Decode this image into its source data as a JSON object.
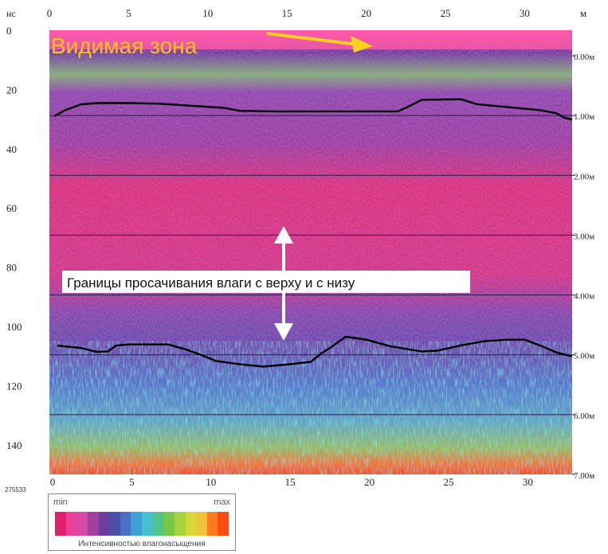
{
  "chart_data": {
    "type": "heatmap",
    "title": "",
    "x_unit": "м",
    "y_unit": "нс",
    "x_ticks": [
      0,
      5,
      10,
      15,
      20,
      25,
      30
    ],
    "x_ticks_bottom": [
      0,
      5,
      10,
      15,
      20,
      25,
      30
    ],
    "y_ticks": [
      0,
      20,
      40,
      60,
      80,
      100,
      120,
      140
    ],
    "depth_ticks": [
      "0.00м",
      "1.00м",
      "2.00м",
      "3.00м",
      "4.00м",
      "5.00м",
      "6.00м",
      "7.00м"
    ],
    "xlim": [
      0,
      33
    ],
    "ylim": [
      0,
      150
    ],
    "depth_range": [
      0,
      7
    ],
    "corner_label": "275533",
    "annotations": {
      "visible_zone": "Видимая зона",
      "seepage_bounds": "Границы просачивания влаги с верху и с низу"
    },
    "upper_boundary": [
      [
        0.3,
        29
      ],
      [
        1.0,
        27
      ],
      [
        2.0,
        25
      ],
      [
        3.0,
        24.6
      ],
      [
        5.0,
        24.6
      ],
      [
        7.0,
        24.8
      ],
      [
        9.0,
        25.5
      ],
      [
        11.0,
        26.2
      ],
      [
        12.0,
        27.2
      ],
      [
        14.0,
        27.4
      ],
      [
        17.0,
        27.4
      ],
      [
        20.0,
        27.4
      ],
      [
        22.0,
        27.4
      ],
      [
        22.5,
        26.2
      ],
      [
        23.5,
        23.5
      ],
      [
        26.0,
        23.3
      ],
      [
        27.0,
        25
      ],
      [
        29.0,
        26
      ],
      [
        31.0,
        27
      ],
      [
        32.0,
        28
      ],
      [
        32.5,
        29.5
      ],
      [
        33.0,
        30.2
      ]
    ],
    "lower_boundary": [
      [
        0.5,
        106.5
      ],
      [
        2.0,
        107.3
      ],
      [
        3.0,
        108.6
      ],
      [
        3.7,
        108.5
      ],
      [
        4.2,
        106.5
      ],
      [
        5.0,
        106.1
      ],
      [
        7.5,
        106.1
      ],
      [
        8.5,
        107.6
      ],
      [
        9.5,
        109.5
      ],
      [
        10.5,
        111.7
      ],
      [
        12.0,
        112.8
      ],
      [
        13.5,
        113.6
      ],
      [
        15.0,
        112.9
      ],
      [
        16.5,
        112.0
      ],
      [
        17.2,
        109
      ],
      [
        17.8,
        107
      ],
      [
        18.7,
        103.5
      ],
      [
        20.0,
        104.5
      ],
      [
        21.5,
        106.7
      ],
      [
        23.5,
        108.5
      ],
      [
        24.5,
        108.2
      ],
      [
        26.0,
        106.4
      ],
      [
        27.5,
        105
      ],
      [
        29.0,
        104.5
      ],
      [
        30.0,
        104.5
      ],
      [
        31.0,
        106.5
      ],
      [
        32.0,
        108.8
      ],
      [
        33.0,
        110.2
      ]
    ],
    "depth_gridlines_m": [
      1,
      2,
      3,
      4,
      5,
      6
    ],
    "colorbar": {
      "min_label": "min",
      "max_label": "max",
      "caption": "Интенсивностью влагонасыщения",
      "colors": [
        "#e0206a",
        "#ee3f98",
        "#d64aa8",
        "#a23f9f",
        "#6a3e9b",
        "#4b4fa6",
        "#4b6fc2",
        "#3f9fd7",
        "#45c0d0",
        "#4fc58a",
        "#77c845",
        "#a7d33e",
        "#d8d83a",
        "#f2c23a",
        "#ff7a1a",
        "#ff4a10"
      ]
    }
  }
}
